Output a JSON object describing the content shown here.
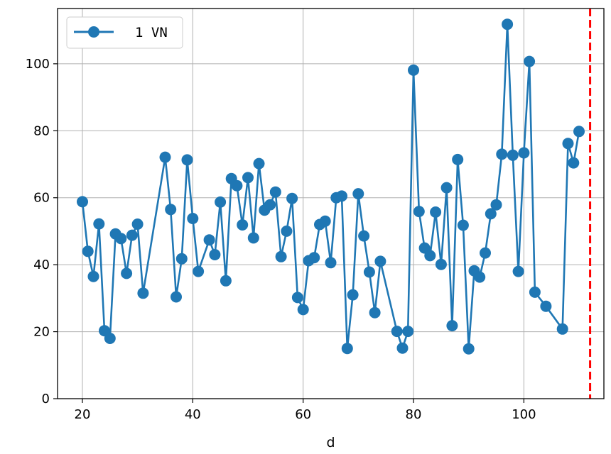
{
  "chart_data": {
    "type": "line",
    "title": "",
    "xlabel": "d",
    "ylabel": "",
    "xlim": [
      15.5,
      114.5
    ],
    "ylim": [
      0,
      116.5
    ],
    "xticks": [
      20,
      40,
      60,
      80,
      100
    ],
    "yticks": [
      0,
      20,
      40,
      60,
      80,
      100
    ],
    "grid": true,
    "legend": {
      "placement": "top-left",
      "entries": [
        "1 VN"
      ]
    },
    "reference_line": {
      "x": 112,
      "style": "dashed",
      "color": "#ff0000"
    },
    "series": [
      {
        "name": "1 VN",
        "color": "#1f77b4",
        "marker": "circle",
        "points": [
          [
            20,
            58.8
          ],
          [
            21,
            44.0
          ],
          [
            22,
            36.5
          ],
          [
            23,
            52.2
          ],
          [
            24,
            20.3
          ],
          [
            25,
            18.0
          ],
          [
            26,
            49.2
          ],
          [
            27,
            47.8
          ],
          [
            28,
            37.4
          ],
          [
            29,
            48.8
          ],
          [
            30,
            52.1
          ],
          [
            31,
            31.5
          ],
          [
            35,
            72.1
          ],
          [
            36,
            56.5
          ],
          [
            37,
            30.4
          ],
          [
            38,
            41.8
          ],
          [
            39,
            71.3
          ],
          [
            40,
            53.8
          ],
          [
            41,
            38.0
          ],
          [
            43,
            47.4
          ],
          [
            44,
            43.0
          ],
          [
            45,
            58.7
          ],
          [
            46,
            35.2
          ],
          [
            47,
            65.7
          ],
          [
            48,
            63.6
          ],
          [
            49,
            51.9
          ],
          [
            50,
            66.0
          ],
          [
            51,
            48.0
          ],
          [
            52,
            70.2
          ],
          [
            53,
            56.3
          ],
          [
            54,
            57.9
          ],
          [
            55,
            61.7
          ],
          [
            56,
            42.4
          ],
          [
            57,
            50.0
          ],
          [
            58,
            59.8
          ],
          [
            59,
            30.2
          ],
          [
            60,
            26.6
          ],
          [
            61,
            41.2
          ],
          [
            62,
            42.1
          ],
          [
            63,
            52.0
          ],
          [
            64,
            53.0
          ],
          [
            65,
            40.6
          ],
          [
            66,
            60.0
          ],
          [
            67,
            60.5
          ],
          [
            68,
            15.0
          ],
          [
            69,
            31.0
          ],
          [
            70,
            61.2
          ],
          [
            71,
            48.6
          ],
          [
            72,
            37.8
          ],
          [
            73,
            25.7
          ],
          [
            74,
            41.0
          ],
          [
            77,
            20.1
          ],
          [
            78,
            15.1
          ],
          [
            79,
            20.1
          ],
          [
            80,
            98.1
          ],
          [
            81,
            55.9
          ],
          [
            82,
            45.0
          ],
          [
            83,
            42.7
          ],
          [
            84,
            55.7
          ],
          [
            85,
            40.1
          ],
          [
            86,
            63.0
          ],
          [
            87,
            21.8
          ],
          [
            88,
            71.4
          ],
          [
            89,
            51.8
          ],
          [
            90,
            14.9
          ],
          [
            91,
            38.2
          ],
          [
            92,
            36.3
          ],
          [
            93,
            43.5
          ],
          [
            94,
            55.2
          ],
          [
            95,
            57.9
          ],
          [
            96,
            73.0
          ],
          [
            97,
            111.8
          ],
          [
            98,
            72.7
          ],
          [
            99,
            38.0
          ],
          [
            100,
            73.4
          ],
          [
            101,
            100.7
          ],
          [
            102,
            31.8
          ],
          [
            104,
            27.6
          ],
          [
            107,
            20.8
          ],
          [
            108,
            76.2
          ],
          [
            109,
            70.4
          ],
          [
            110,
            79.8
          ]
        ]
      }
    ]
  }
}
